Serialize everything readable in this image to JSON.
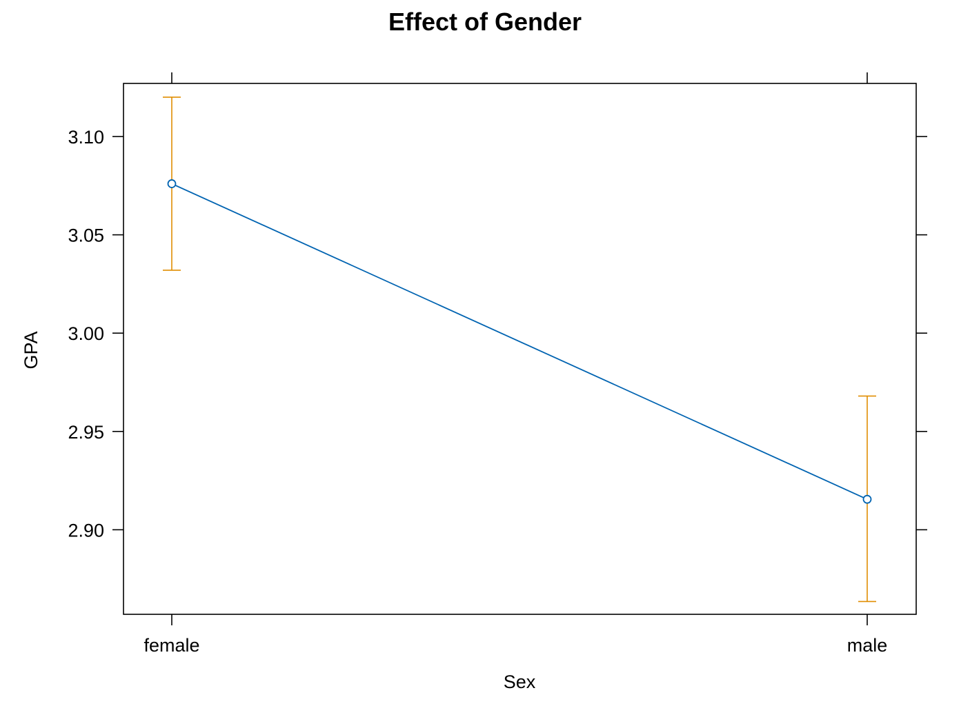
{
  "chart_data": {
    "type": "line",
    "title": "Effect of Gender",
    "xlabel": "Sex",
    "ylabel": "GPA",
    "categories": [
      "female",
      "male"
    ],
    "series": [
      {
        "values": [
          3.076,
          2.9155
        ],
        "lower": [
          3.032,
          2.8635
        ],
        "upper": [
          3.12,
          2.968
        ]
      }
    ],
    "ylim": [
      2.857,
      3.127
    ],
    "yticks": [
      "2.90",
      "2.95",
      "3.00",
      "3.05",
      "3.10"
    ],
    "grid": false,
    "legend": "none",
    "colors": {
      "line": "#0063b1",
      "errorbar": "#e08d00",
      "axis": "#000000"
    }
  }
}
